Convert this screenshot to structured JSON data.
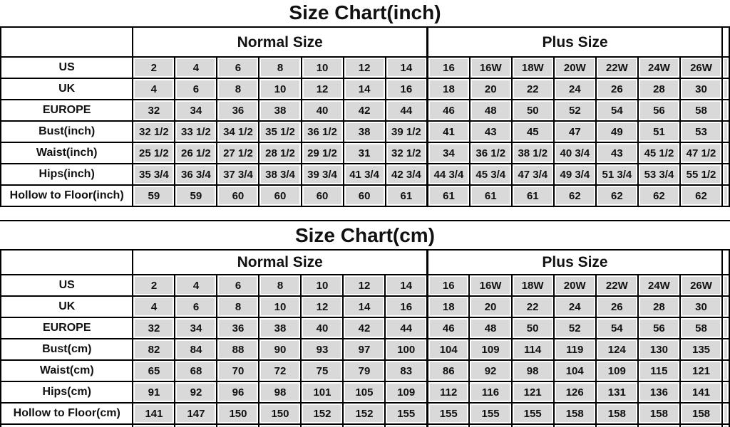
{
  "page": {
    "background": "#ffffff",
    "text_color": "#111111",
    "border_color": "#000000",
    "cell_fill": "#d9d9d9"
  },
  "chart_data": [
    {
      "type": "table",
      "title": "Size Chart(inch)",
      "column_groups": [
        {
          "label": "Normal Size",
          "span": 7
        },
        {
          "label": "Plus Size",
          "span": 7
        }
      ],
      "rows": [
        {
          "label": "US",
          "values": [
            "2",
            "4",
            "6",
            "8",
            "10",
            "12",
            "14",
            "16",
            "16W",
            "18W",
            "20W",
            "22W",
            "24W",
            "26W"
          ]
        },
        {
          "label": "UK",
          "values": [
            "4",
            "6",
            "8",
            "10",
            "12",
            "14",
            "16",
            "18",
            "20",
            "22",
            "24",
            "26",
            "28",
            "30"
          ]
        },
        {
          "label": "EUROPE",
          "values": [
            "32",
            "34",
            "36",
            "38",
            "40",
            "42",
            "44",
            "46",
            "48",
            "50",
            "52",
            "54",
            "56",
            "58"
          ]
        },
        {
          "label": "Bust(inch)",
          "values": [
            "32 1/2",
            "33 1/2",
            "34 1/2",
            "35 1/2",
            "36 1/2",
            "38",
            "39 1/2",
            "41",
            "43",
            "45",
            "47",
            "49",
            "51",
            "53"
          ]
        },
        {
          "label": "Waist(inch)",
          "values": [
            "25 1/2",
            "26 1/2",
            "27 1/2",
            "28 1/2",
            "29 1/2",
            "31",
            "32 1/2",
            "34",
            "36 1/2",
            "38 1/2",
            "40 3/4",
            "43",
            "45 1/2",
            "47 1/2"
          ]
        },
        {
          "label": "Hips(inch)",
          "values": [
            "35 3/4",
            "36 3/4",
            "37 3/4",
            "38 3/4",
            "39 3/4",
            "41 3/4",
            "42 3/4",
            "44 3/4",
            "45 3/4",
            "47 3/4",
            "49 3/4",
            "51 3/4",
            "53 3/4",
            "55 1/2"
          ]
        },
        {
          "label": "Hollow to Floor(inch)",
          "values": [
            "59",
            "59",
            "60",
            "60",
            "60",
            "60",
            "61",
            "61",
            "61",
            "61",
            "62",
            "62",
            "62",
            "62"
          ]
        }
      ],
      "partial_bottom_row": false
    },
    {
      "type": "table",
      "title": "Size Chart(cm)",
      "column_groups": [
        {
          "label": "Normal Size",
          "span": 7
        },
        {
          "label": "Plus Size",
          "span": 7
        }
      ],
      "rows": [
        {
          "label": "US",
          "values": [
            "2",
            "4",
            "6",
            "8",
            "10",
            "12",
            "14",
            "16",
            "16W",
            "18W",
            "20W",
            "22W",
            "24W",
            "26W"
          ]
        },
        {
          "label": "UK",
          "values": [
            "4",
            "6",
            "8",
            "10",
            "12",
            "14",
            "16",
            "18",
            "20",
            "22",
            "24",
            "26",
            "28",
            "30"
          ]
        },
        {
          "label": "EUROPE",
          "values": [
            "32",
            "34",
            "36",
            "38",
            "40",
            "42",
            "44",
            "46",
            "48",
            "50",
            "52",
            "54",
            "56",
            "58"
          ]
        },
        {
          "label": "Bust(cm)",
          "values": [
            "82",
            "84",
            "88",
            "90",
            "93",
            "97",
            "100",
            "104",
            "109",
            "114",
            "119",
            "124",
            "130",
            "135"
          ]
        },
        {
          "label": "Waist(cm)",
          "values": [
            "65",
            "68",
            "70",
            "72",
            "75",
            "79",
            "83",
            "86",
            "92",
            "98",
            "104",
            "109",
            "115",
            "121"
          ]
        },
        {
          "label": "Hips(cm)",
          "values": [
            "91",
            "92",
            "96",
            "98",
            "101",
            "105",
            "109",
            "112",
            "116",
            "121",
            "126",
            "131",
            "136",
            "141"
          ]
        },
        {
          "label": "Hollow to Floor(cm)",
          "values": [
            "141",
            "147",
            "150",
            "150",
            "152",
            "152",
            "155",
            "155",
            "155",
            "155",
            "158",
            "158",
            "158",
            "158"
          ]
        }
      ],
      "partial_bottom_row": true
    }
  ]
}
